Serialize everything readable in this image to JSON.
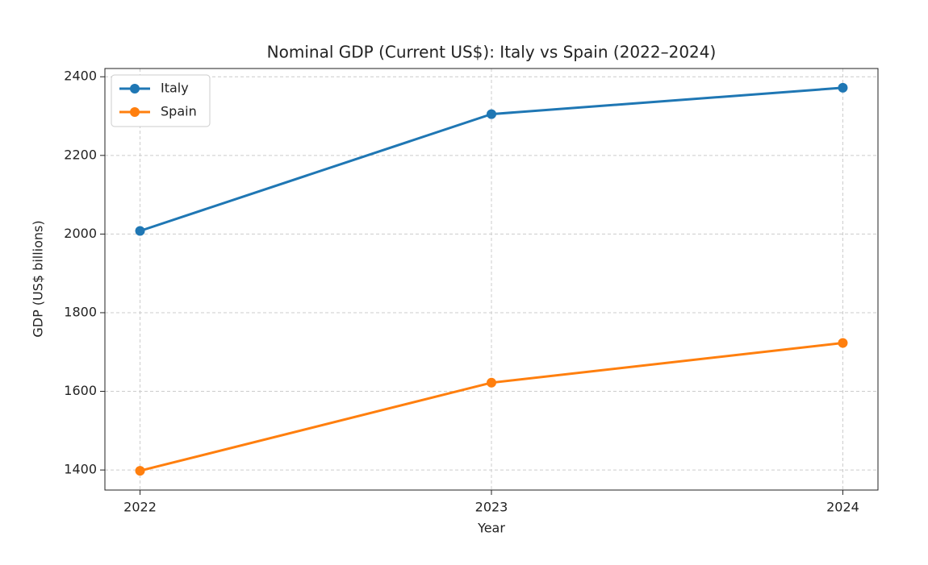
{
  "chart_data": {
    "type": "line",
    "title": "Nominal GDP (Current US$): Italy vs Spain (2022–2024)",
    "x_label": "Year",
    "y_label": "GDP (US$ billions)",
    "x": [
      2022,
      2023,
      2024
    ],
    "series": [
      {
        "name": "Italy",
        "color": "#1f77b4",
        "values": [
          2008,
          2305,
          2372
        ]
      },
      {
        "name": "Spain",
        "color": "#ff7f0e",
        "values": [
          1398,
          1622,
          1723
        ]
      }
    ],
    "xlim": [
      2021.9,
      2024.1
    ],
    "xticks": [
      2022,
      2023,
      2024
    ],
    "ylim": [
      1349,
      2421
    ],
    "yticks": [
      1400,
      1600,
      1800,
      2000,
      2200,
      2400
    ],
    "grid": true,
    "legend": "upper-left"
  }
}
